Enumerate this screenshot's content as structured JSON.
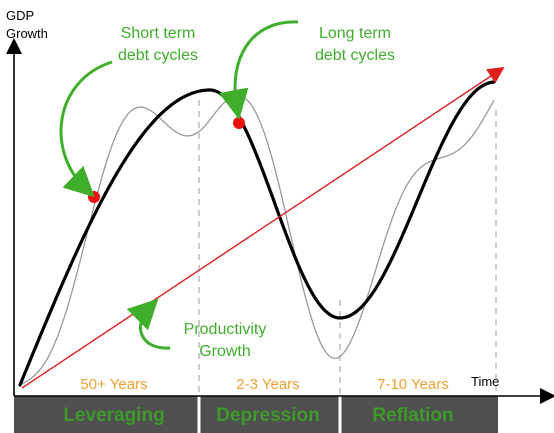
{
  "axes": {
    "y_label_line1": "GDP",
    "y_label_line2": "Growth",
    "x_label": "Time"
  },
  "callouts": {
    "short_term_line1": "Short term",
    "short_term_line2": "debt cycles",
    "long_term_line1": "Long term",
    "long_term_line2": "debt cycles",
    "productivity_line1": "Productivity",
    "productivity_line2": "Growth"
  },
  "periods": [
    {
      "years": "50+ Years",
      "phase": "Leveraging"
    },
    {
      "years": "2-3 Years",
      "phase": "Depression"
    },
    {
      "years": "7-10 Years",
      "phase": "Reflation"
    }
  ],
  "colors": {
    "callout_green": "#3fae2a",
    "years_orange": "#f0a030",
    "phase_band": "#4f4f4f",
    "phase_text": "#3d9a2b",
    "productivity_line": "#e02020",
    "long_term_curve": "#000000",
    "short_term_curve": "#9a9a9a",
    "marker": "#ee1111"
  }
}
